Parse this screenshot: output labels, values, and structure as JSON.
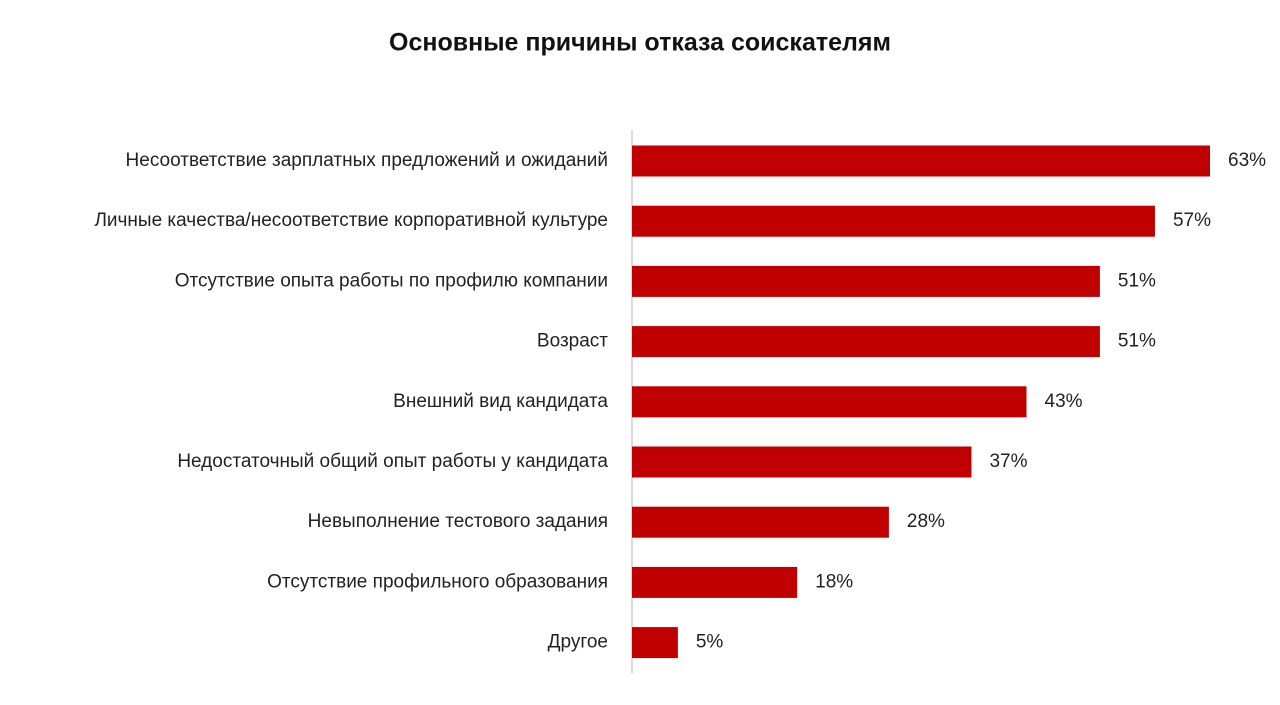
{
  "chart_data": {
    "type": "hbar",
    "title": "Основные причины отказа соискателям",
    "categories": [
      "Несоответствие зарплатных предложений и ожиданий",
      "Личные качества/несоответствие корпоративной культуре",
      "Отсутствие опыта работы по профилю компании",
      "Возраст",
      "Внешний вид кандидата",
      "Недостаточный общий опыт работы у кандидата",
      "Невыполнение тестового задания",
      "Отсутствие профильного образования",
      "Другое"
    ],
    "values": [
      63,
      57,
      51,
      51,
      43,
      37,
      28,
      18,
      5
    ],
    "value_labels": [
      "63%",
      "57%",
      "51%",
      "51%",
      "43%",
      "37%",
      "28%",
      "18%",
      "5%"
    ],
    "color": "#c00000"
  }
}
